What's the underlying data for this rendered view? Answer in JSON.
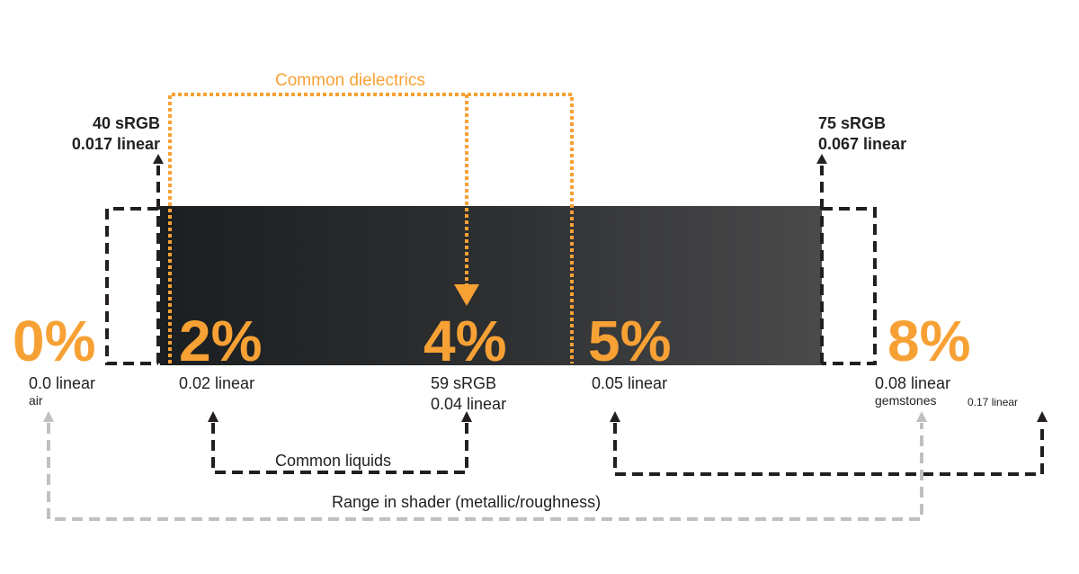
{
  "colors": {
    "accent": "#f7a135",
    "dark": "#231f20",
    "grey": "#bfc0c1",
    "gradient_start": "#1c1f21",
    "gradient_end": "#4a4a4b"
  },
  "percent_labels": {
    "p0": "0%",
    "p2": "2%",
    "p4": "4%",
    "p5": "5%",
    "p8": "8%"
  },
  "value_labels": {
    "v0_linear": "0.0 linear",
    "v0_name": "air",
    "v2_linear": "0.02 linear",
    "v4_srgb": "59 sRGB",
    "v4_linear": "0.04 linear",
    "v5_linear": "0.05 linear",
    "v8_linear": "0.08 linear",
    "v8_name": "gemstones",
    "v17_linear": "0.17 linear"
  },
  "bounds": {
    "low_srgb": "40 sRGB",
    "low_linear": "0.017 linear",
    "high_srgb": "75 sRGB",
    "high_linear": "0.067 linear"
  },
  "ranges": {
    "dielectrics": "Common dielectrics",
    "liquids": "Common liquids",
    "shader": "Range in shader (metallic/roughness)"
  }
}
